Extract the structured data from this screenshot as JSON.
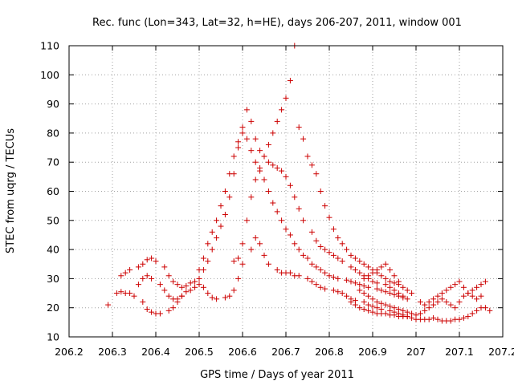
{
  "chart_data": {
    "type": "scatter",
    "title": "Rec. func (Lon=343, Lat=32, h=HE), days 206-207, 2011, window 001",
    "xlabel": "GPS time / Days of year 2011",
    "ylabel": "STEC from uqrg / TECUs",
    "xlim": [
      206.2,
      207.2
    ],
    "ylim": [
      10,
      110
    ],
    "xticks": [
      "206.2",
      "206.3",
      "206.4",
      "206.5",
      "206.6",
      "206.7",
      "206.8",
      "206.9",
      "207",
      "207.1",
      "207.2"
    ],
    "yticks": [
      "10",
      "20",
      "30",
      "40",
      "50",
      "60",
      "70",
      "80",
      "90",
      "100",
      "110"
    ],
    "grid": true,
    "marker": "+",
    "color": "#cc0000",
    "series": [
      {
        "x": [
          206.29,
          206.31,
          206.32,
          206.33,
          206.34,
          206.35,
          206.37,
          206.38,
          206.39,
          206.4,
          206.41,
          206.43,
          206.44,
          206.45,
          206.46,
          206.47,
          206.49,
          206.5,
          206.51,
          206.52,
          206.53,
          206.54,
          206.56,
          206.57,
          206.58,
          206.59,
          206.6,
          206.62,
          206.63,
          206.64,
          206.65,
          206.66,
          206.68,
          206.69,
          206.7,
          206.71,
          206.72,
          206.73,
          206.75,
          206.76,
          206.77,
          206.78,
          206.79,
          206.81,
          206.82,
          206.83,
          206.84,
          206.85,
          206.86,
          206.88,
          206.89,
          206.9,
          206.91,
          206.92,
          206.94,
          206.95,
          206.96,
          206.97,
          206.98
        ],
        "y": [
          21,
          25,
          25.5,
          25,
          25,
          24,
          22,
          19.5,
          18.5,
          18,
          18,
          19,
          20,
          22,
          24,
          25.5,
          27,
          28,
          27,
          25,
          23.5,
          23,
          23.5,
          24,
          26,
          30,
          35,
          40,
          44,
          42,
          38,
          35,
          33,
          32,
          32,
          32,
          31,
          31,
          30,
          29,
          28,
          27,
          26.5,
          26,
          25.5,
          25,
          24,
          23,
          22.5,
          22,
          21,
          20.5,
          20,
          19.5,
          19,
          18.5,
          18,
          17.5,
          17
        ]
      },
      {
        "x": [
          206.32,
          206.33,
          206.34,
          206.36,
          206.37,
          206.38,
          206.39,
          206.4,
          206.42,
          206.43,
          206.44,
          206.45,
          206.46,
          206.47,
          206.48,
          206.5,
          206.51,
          206.52,
          206.53,
          206.54,
          206.55,
          206.56,
          206.57,
          206.58,
          206.59,
          206.6,
          206.61,
          206.62,
          206.63,
          206.64,
          206.65,
          206.66,
          206.67,
          206.68,
          206.69,
          206.7,
          206.71,
          206.72,
          206.73,
          206.74,
          206.76,
          206.77,
          206.78,
          206.79,
          206.8,
          206.81,
          206.82,
          206.83,
          206.85,
          206.86,
          206.87,
          206.88,
          206.89,
          206.9,
          206.91,
          206.93,
          206.94,
          206.95,
          206.96,
          206.97,
          206.98
        ],
        "y": [
          31,
          32,
          33,
          34,
          35,
          36.5,
          37,
          36,
          34,
          31,
          29,
          28,
          27,
          27.5,
          28.5,
          30,
          33,
          36,
          40,
          44,
          48,
          52,
          58,
          66,
          75,
          82,
          88,
          84,
          78,
          74,
          72,
          70,
          69,
          68,
          67,
          65,
          62,
          58,
          54,
          50,
          46,
          43,
          41,
          40,
          39,
          38,
          37,
          36,
          34,
          33,
          32,
          31,
          30,
          29,
          28.5,
          28,
          27,
          26,
          25,
          24,
          23
        ]
      },
      {
        "x": [
          206.36,
          206.37,
          206.38,
          206.39,
          206.41,
          206.42,
          206.43,
          206.44,
          206.45,
          206.46,
          206.48,
          206.49,
          206.5,
          206.51,
          206.52,
          206.53,
          206.54,
          206.55,
          206.56,
          206.57,
          206.58,
          206.59,
          206.6,
          206.61,
          206.62,
          206.63,
          206.64,
          206.65,
          206.66,
          206.67,
          206.68,
          206.69,
          206.7,
          206.71,
          206.72,
          206.73,
          206.74,
          206.75,
          206.76,
          206.77,
          206.78,
          206.79,
          206.8,
          206.81,
          206.82,
          206.84,
          206.85,
          206.86,
          206.87,
          206.88,
          206.89,
          206.91,
          206.92,
          206.93,
          206.94,
          206.95,
          206.96,
          206.97
        ],
        "y": [
          28,
          30,
          31,
          30,
          28,
          26,
          24,
          23,
          23,
          24,
          26,
          29,
          33,
          37,
          42,
          46,
          50,
          55,
          60,
          66,
          72,
          77,
          80,
          78,
          74,
          70,
          67,
          64,
          60,
          56,
          53,
          50,
          47,
          45,
          42,
          40,
          38,
          37,
          35,
          34,
          33,
          32,
          31,
          30.5,
          30,
          29.5,
          29,
          28.5,
          28,
          27.5,
          27,
          26.5,
          26,
          25.5,
          25,
          24.5,
          24,
          23.5
        ]
      },
      {
        "x": [
          206.58,
          206.59,
          206.6,
          206.61,
          206.62,
          206.63,
          206.64,
          206.65,
          206.66,
          206.67,
          206.68,
          206.69,
          206.7,
          206.71,
          206.72,
          206.73,
          206.74,
          206.75,
          206.76,
          206.77,
          206.78,
          206.79,
          206.8,
          206.81,
          206.82,
          206.83,
          206.84,
          206.85,
          206.86,
          206.87,
          206.88,
          206.89,
          206.9,
          206.91,
          206.92,
          206.93,
          206.94,
          206.95,
          206.96
        ],
        "y": [
          36,
          37,
          42,
          50,
          58,
          64,
          68,
          72,
          76,
          80,
          84,
          88,
          92,
          98,
          110,
          82,
          78,
          72,
          69,
          66,
          60,
          55,
          51,
          47,
          44,
          42,
          40,
          38,
          37,
          36,
          35,
          34,
          33,
          32,
          31,
          30,
          29,
          28.5,
          28
        ]
      },
      {
        "x": [
          206.85,
          206.86,
          206.87,
          206.88,
          206.89,
          206.9,
          206.91,
          206.92,
          206.93,
          206.94,
          206.95,
          206.96,
          206.97,
          206.98,
          206.99,
          207.0,
          207.01,
          207.02,
          207.03,
          207.04,
          207.05,
          207.06,
          207.07,
          207.08,
          207.09,
          207.1,
          207.11,
          207.12,
          207.13,
          207.14,
          207.15,
          207.16,
          207.17
        ],
        "y": [
          22,
          21,
          20,
          19.5,
          19,
          18.5,
          18,
          18,
          18,
          17.5,
          17.5,
          17,
          17,
          17,
          16.5,
          16,
          16,
          16,
          16,
          16.5,
          16,
          15.5,
          15.5,
          15.5,
          16,
          16,
          16.5,
          17,
          18,
          19,
          20,
          20,
          19
        ]
      },
      {
        "x": [
          206.87,
          206.88,
          206.89,
          206.9,
          206.91,
          206.92,
          206.93,
          206.94,
          206.95,
          206.96,
          206.97,
          206.98,
          206.99,
          207.0,
          207.01,
          207.02,
          207.03,
          207.04,
          207.05,
          207.06,
          207.07,
          207.08,
          207.09,
          207.1,
          207.11,
          207.12,
          207.13,
          207.14,
          207.15,
          207.16
        ],
        "y": [
          26,
          25,
          24,
          23,
          22,
          21.5,
          21,
          20.5,
          20,
          19.5,
          19,
          18.5,
          18,
          17.5,
          18,
          19,
          20,
          21,
          22,
          23,
          22,
          21,
          20,
          22,
          24,
          25,
          26,
          27,
          28,
          29
        ]
      },
      {
        "x": [
          206.88,
          206.89,
          206.9,
          206.91,
          206.92,
          206.93,
          206.94,
          206.95,
          206.96,
          206.97,
          206.98,
          206.99,
          207.01,
          207.02,
          207.03,
          207.04,
          207.05,
          207.06,
          207.07,
          207.08,
          207.09,
          207.1,
          207.11,
          207.12,
          207.13,
          207.14,
          207.15
        ],
        "y": [
          30,
          31,
          32,
          33,
          34,
          35,
          33,
          31,
          29,
          27,
          26,
          25,
          22,
          21,
          22,
          23,
          24,
          25,
          26,
          27,
          28,
          29,
          27,
          25,
          24,
          23,
          24
        ]
      }
    ]
  }
}
